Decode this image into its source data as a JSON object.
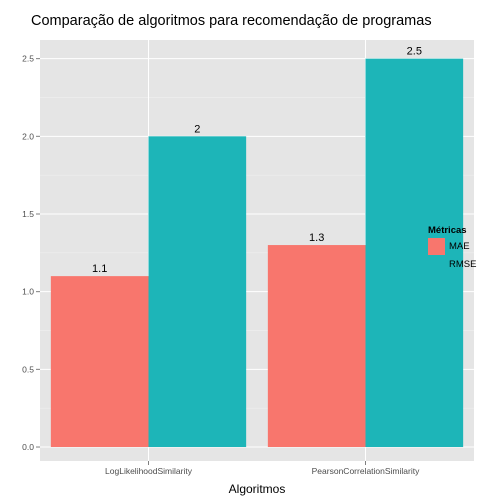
{
  "chart_data": {
    "type": "bar",
    "title": "Comparação de algoritmos para recomendação de programas",
    "xlabel": "Algoritmos",
    "ylabel": "",
    "categories": [
      "LogLikelihoodSimilarity",
      "PearsonCorrelationSimilarity"
    ],
    "series": [
      {
        "name": "MAE",
        "values": [
          1.1,
          1.3
        ],
        "value_labels": [
          "1.1",
          "1.3"
        ],
        "color": "#f8766d"
      },
      {
        "name": "RMSE",
        "values": [
          2.0,
          2.5
        ],
        "value_labels": [
          "2",
          "2.5"
        ],
        "color": "#1db5b8"
      }
    ],
    "ylim": [
      -0.09,
      2.62
    ],
    "yticks": [
      0.0,
      0.5,
      1.0,
      1.5,
      2.0,
      2.5
    ],
    "ytick_labels": [
      "0.0",
      "0.5",
      "1.0",
      "1.5",
      "2.0",
      "2.5"
    ],
    "legend_title": "Métricas",
    "legend_position": "right",
    "grid": true,
    "colors": {
      "panel": "#e5e5e5",
      "grid_major": "#ffffff",
      "grid_minor": "#f2f2f2",
      "tick_text": "#4d4d4d"
    }
  }
}
